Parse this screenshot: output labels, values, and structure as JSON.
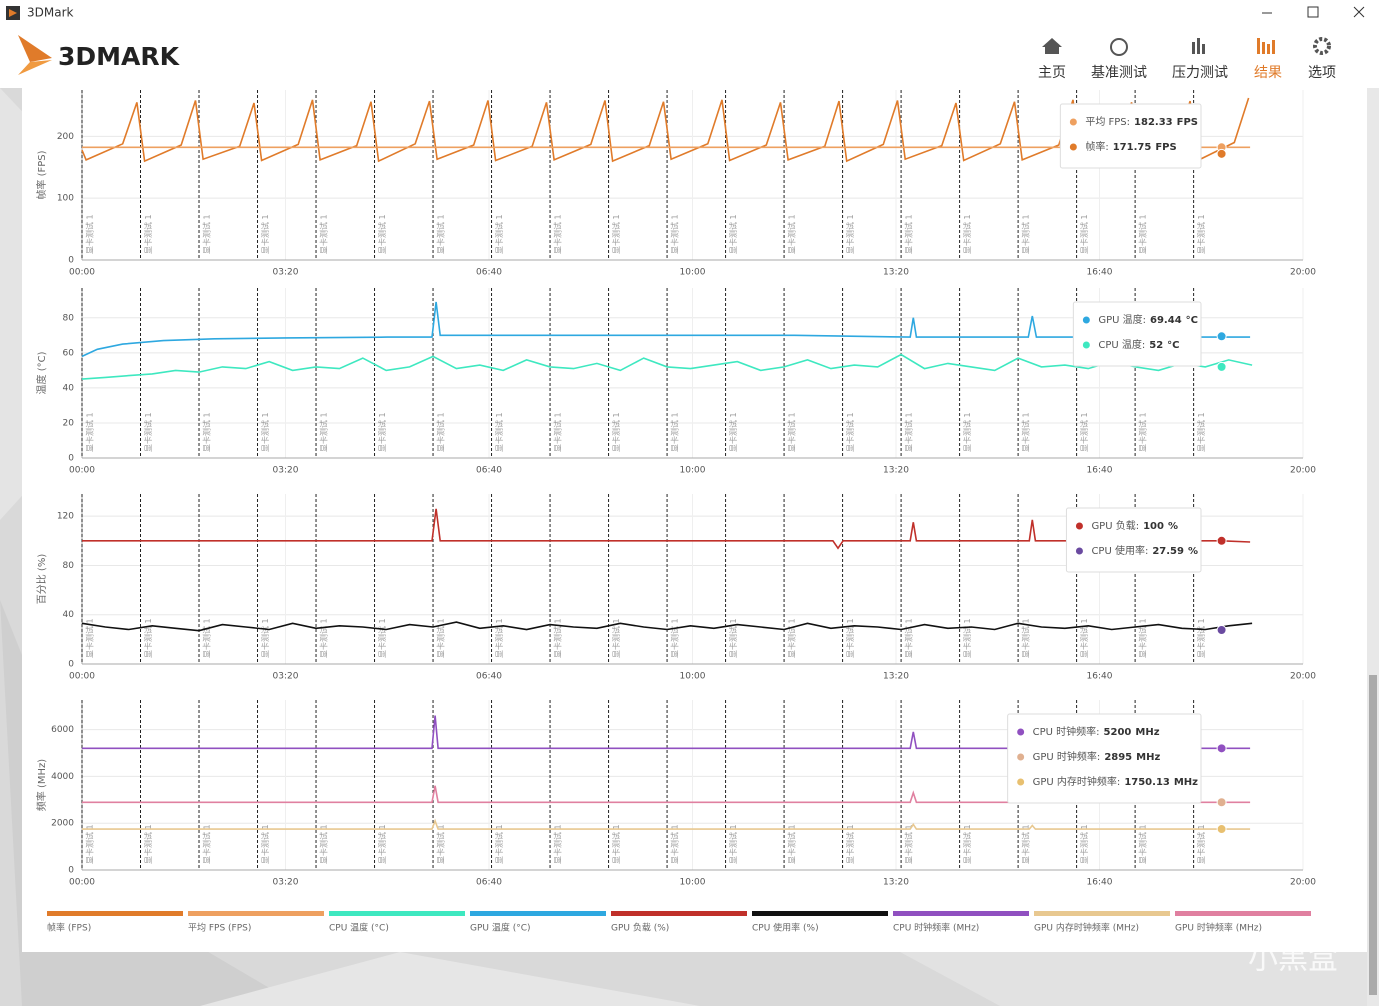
{
  "window": {
    "title": "3DMark"
  },
  "logo": "3DMARK",
  "nav": {
    "items": [
      "主页",
      "基准测试",
      "压力测试",
      "结果",
      "选项"
    ],
    "active": 3
  },
  "watermark": "小黑盒",
  "markers": [
    {
      "x": 0,
      "label": "显卡测试 1"
    },
    {
      "x": 57.5,
      "label": "显卡测试 1"
    },
    {
      "x": 115,
      "label": "显卡测试 1"
    },
    {
      "x": 172.5,
      "label": "显卡测试 1"
    },
    {
      "x": 230,
      "label": "显卡测试 1"
    },
    {
      "x": 287.5,
      "label": "显卡测试 1"
    },
    {
      "x": 345,
      "label": "显卡测试 1"
    },
    {
      "x": 402.5,
      "label": "显卡测试 1"
    },
    {
      "x": 460,
      "label": "显卡测试 1"
    },
    {
      "x": 517.5,
      "label": "显卡测试 1"
    },
    {
      "x": 575,
      "label": "显卡测试 1"
    },
    {
      "x": 632.5,
      "label": "显卡测试 1"
    },
    {
      "x": 690,
      "label": "显卡测试 1"
    },
    {
      "x": 747.5,
      "label": "显卡测试 1"
    },
    {
      "x": 805,
      "label": "显卡测试 1"
    },
    {
      "x": 862.5,
      "label": "显卡测试 1"
    },
    {
      "x": 920,
      "label": "显卡测试 1"
    },
    {
      "x": 977.5,
      "label": "显卡测试 1"
    },
    {
      "x": 1035,
      "label": "显卡测试 1"
    },
    {
      "x": 1092.5,
      "label": "显卡测试 1"
    }
  ],
  "chart_data": [
    {
      "type": "line",
      "y_label": "帧率 (FPS)",
      "xlim": [
        0,
        1200
      ],
      "ylim": [
        0,
        275
      ],
      "yticks": [
        0,
        100,
        200
      ],
      "xticks": [
        {
          "value": 0,
          "label": "00:00"
        },
        {
          "value": 200,
          "label": "03:20"
        },
        {
          "value": 400,
          "label": "06:40"
        },
        {
          "value": 600,
          "label": "10:00"
        },
        {
          "value": 800,
          "label": "13:20"
        },
        {
          "value": 1000,
          "label": "16:40"
        },
        {
          "value": 1200,
          "label": "20:00"
        }
      ],
      "cursor": 1120,
      "series": [
        {
          "name": "帧率 (FPS)",
          "color": "#e07b2a",
          "x": [
            0,
            4,
            40,
            54,
            61.5,
            97.5,
            111.5,
            119,
            155,
            169,
            176.5,
            212.5,
            226.5,
            234,
            270,
            284,
            291.5,
            327.5,
            341.5,
            349,
            385,
            399,
            406.5,
            442.5,
            456.5,
            464,
            500,
            514,
            521.5,
            557.5,
            571.5,
            579,
            615,
            629,
            636.5,
            672.5,
            686.5,
            694,
            730,
            744,
            751.5,
            787.5,
            801.5,
            809,
            845,
            859,
            866.5,
            902.5,
            916.5,
            924,
            960,
            974,
            981.5,
            1017.5,
            1031.5,
            1039,
            1075,
            1089,
            1096.5,
            1132.5,
            1146.5
          ],
          "values": [
            178,
            162,
            188,
            255,
            160,
            186,
            258,
            163,
            184,
            254,
            161,
            187,
            259,
            162,
            185,
            256,
            160,
            188,
            257,
            163,
            186,
            258,
            161,
            184,
            255,
            162,
            187,
            258,
            160,
            185,
            256,
            163,
            188,
            259,
            161,
            186,
            255,
            162,
            184,
            257,
            160,
            187,
            258,
            163,
            185,
            254,
            161,
            188,
            256,
            162,
            186,
            259,
            160,
            184,
            255,
            163,
            187,
            257,
            161,
            190,
            262
          ]
        },
        {
          "name": "平均 FPS (FPS)",
          "color": "#eea060",
          "x": [
            0,
            1148
          ],
          "values": [
            182.33,
            182.33
          ]
        }
      ],
      "tooltip": [
        {
          "label": "平均 FPS:",
          "value": 182.33,
          "unit": "FPS",
          "color": "#eea060"
        },
        {
          "label": "帧率:",
          "value": 171.75,
          "unit": "FPS",
          "color": "#e07b2a"
        }
      ]
    },
    {
      "type": "line",
      "y_label": "温度 (°C)",
      "xlim": [
        0,
        1200
      ],
      "ylim": [
        0,
        97
      ],
      "yticks": [
        0,
        20,
        40,
        60,
        80
      ],
      "xticks": [
        {
          "value": 0,
          "label": "00:00"
        },
        {
          "value": 200,
          "label": "03:20"
        },
        {
          "value": 400,
          "label": "06:40"
        },
        {
          "value": 600,
          "label": "10:00"
        },
        {
          "value": 800,
          "label": "13:20"
        },
        {
          "value": 1000,
          "label": "16:40"
        },
        {
          "value": 1200,
          "label": "20:00"
        }
      ],
      "cursor": 1120,
      "series": [
        {
          "name": "CPU 温度 (°C)",
          "color": "#3ee8c0",
          "x": [
            0,
            23,
            46,
            69,
            92,
            115,
            138,
            161,
            184,
            207,
            230,
            253,
            276,
            299,
            322,
            345,
            368,
            391,
            414,
            437,
            460,
            483,
            506,
            529,
            552,
            575,
            598,
            621,
            644,
            667,
            690,
            713,
            736,
            759,
            782,
            805,
            828,
            851,
            874,
            897,
            920,
            943,
            966,
            989,
            1012,
            1035,
            1058,
            1081,
            1104,
            1127,
            1150
          ],
          "values": [
            45,
            46,
            47,
            48,
            50,
            49,
            52,
            51,
            55,
            50,
            52,
            51,
            57,
            50,
            52,
            58,
            51,
            53,
            50,
            56,
            52,
            51,
            54,
            50,
            57,
            52,
            51,
            53,
            55,
            50,
            52,
            56,
            51,
            53,
            52,
            59,
            51,
            54,
            52,
            50,
            57,
            52,
            53,
            51,
            55,
            52,
            50,
            54,
            52,
            56,
            53
          ]
        },
        {
          "name": "GPU 温度 (°C)",
          "color": "#2ea8e0",
          "x": [
            0,
            15,
            40,
            80,
            130,
            200,
            300,
            344,
            348,
            352,
            500,
            700,
            814,
            817,
            820,
            930,
            934,
            938,
            1148
          ],
          "values": [
            58,
            62,
            65,
            67,
            68,
            68.5,
            69,
            69,
            89,
            70,
            70,
            70,
            69,
            80,
            69,
            69,
            81,
            69,
            69
          ]
        }
      ],
      "tooltip": [
        {
          "label": "GPU 温度:",
          "value": 69.44,
          "unit": "°C",
          "color": "#2ea8e0"
        },
        {
          "label": "CPU 温度:",
          "value": 52.0,
          "unit": "°C",
          "color": "#3ee8c0"
        }
      ]
    },
    {
      "type": "line",
      "y_label": "百分比 (%)",
      "xlim": [
        0,
        1200
      ],
      "ylim": [
        0,
        138
      ],
      "yticks": [
        0,
        40,
        80,
        120
      ],
      "xticks": [
        {
          "value": 0,
          "label": "00:00"
        },
        {
          "value": 200,
          "label": "03:20"
        },
        {
          "value": 400,
          "label": "06:40"
        },
        {
          "value": 600,
          "label": "10:00"
        },
        {
          "value": 800,
          "label": "13:20"
        },
        {
          "value": 1000,
          "label": "16:40"
        },
        {
          "value": 1200,
          "label": "20:00"
        }
      ],
      "cursor": 1120,
      "series": [
        {
          "name": "GPU 负载 (%)",
          "color": "#c0302a",
          "x": [
            0,
            344,
            348,
            352,
            738,
            743,
            748,
            814,
            817,
            820,
            931,
            934,
            937,
            1120,
            1148
          ],
          "values": [
            100,
            100,
            126,
            100,
            100,
            94,
            100,
            100,
            115,
            100,
            100,
            117,
            100,
            100,
            99
          ]
        },
        {
          "name": "CPU 使用率 (%)",
          "color": "#111111",
          "x": [
            0,
            23,
            46,
            69,
            92,
            115,
            138,
            161,
            184,
            207,
            230,
            253,
            276,
            299,
            322,
            345,
            368,
            391,
            414,
            437,
            460,
            483,
            506,
            529,
            552,
            575,
            598,
            621,
            644,
            667,
            690,
            713,
            736,
            759,
            782,
            805,
            828,
            851,
            874,
            897,
            920,
            943,
            966,
            989,
            1012,
            1035,
            1058,
            1081,
            1104,
            1127,
            1150
          ],
          "values": [
            33,
            30,
            28,
            31,
            29,
            27,
            32,
            30,
            28,
            33,
            29,
            31,
            30,
            28,
            32,
            30,
            34,
            29,
            31,
            28,
            32,
            30,
            29,
            33,
            30,
            28,
            31,
            29,
            32,
            30,
            28,
            33,
            29,
            31,
            30,
            28,
            32,
            29,
            30,
            28,
            33,
            30,
            29,
            31,
            28,
            30,
            32,
            29,
            28,
            31,
            33
          ]
        }
      ],
      "tooltip": [
        {
          "label": "GPU 负载:",
          "value": 100.0,
          "unit": "%",
          "color": "#c0302a"
        },
        {
          "label": "CPU 使用率:",
          "value": 27.59,
          "unit": "%",
          "color": "#6a4aa0"
        }
      ]
    },
    {
      "type": "line",
      "y_label": "频率 (MHz)",
      "xlim": [
        0,
        1200
      ],
      "ylim": [
        0,
        7265
      ],
      "yticks": [
        0,
        2000,
        4000,
        6000
      ],
      "xticks": [
        {
          "value": 0,
          "label": "00:00"
        },
        {
          "value": 200,
          "label": "03:20"
        },
        {
          "value": 400,
          "label": "06:40"
        },
        {
          "value": 600,
          "label": "10:00"
        },
        {
          "value": 800,
          "label": "13:20"
        },
        {
          "value": 1000,
          "label": "16:40"
        },
        {
          "value": 1200,
          "label": "20:00"
        }
      ],
      "cursor": 1120,
      "series": [
        {
          "name": "CPU 时钟频率 (MHz)",
          "color": "#9050c0",
          "x": [
            0,
            344,
            347,
            350,
            814,
            817,
            820,
            1148
          ],
          "values": [
            5200,
            5200,
            6600,
            5200,
            5200,
            5900,
            5200,
            5200
          ]
        },
        {
          "name": "GPU 内存时钟频率 (MHz)",
          "color": "#e8c890",
          "x": [
            0,
            344,
            347,
            350,
            814,
            817,
            820,
            931,
            934,
            937,
            1148
          ],
          "values": [
            1750,
            1750,
            2100,
            1750,
            1750,
            1950,
            1750,
            1750,
            1900,
            1750,
            1750
          ]
        },
        {
          "name": "GPU 时钟频率 (MHz)",
          "color": "#e080a0",
          "x": [
            0,
            344,
            347,
            350,
            814,
            817,
            820,
            1148
          ],
          "values": [
            2895,
            2895,
            3600,
            2895,
            2895,
            3300,
            2895,
            2895
          ]
        }
      ],
      "tooltip": [
        {
          "label": "CPU 时钟频率:",
          "value": 5200.0,
          "unit": "MHz",
          "color": "#9050c0"
        },
        {
          "label": "GPU 时钟频率:",
          "value": 2895.0,
          "unit": "MHz",
          "color": "#e0b090"
        },
        {
          "label": "GPU 内存时钟频率:",
          "value": 1750.13,
          "unit": "MHz",
          "color": "#e8c070"
        }
      ]
    }
  ]
}
